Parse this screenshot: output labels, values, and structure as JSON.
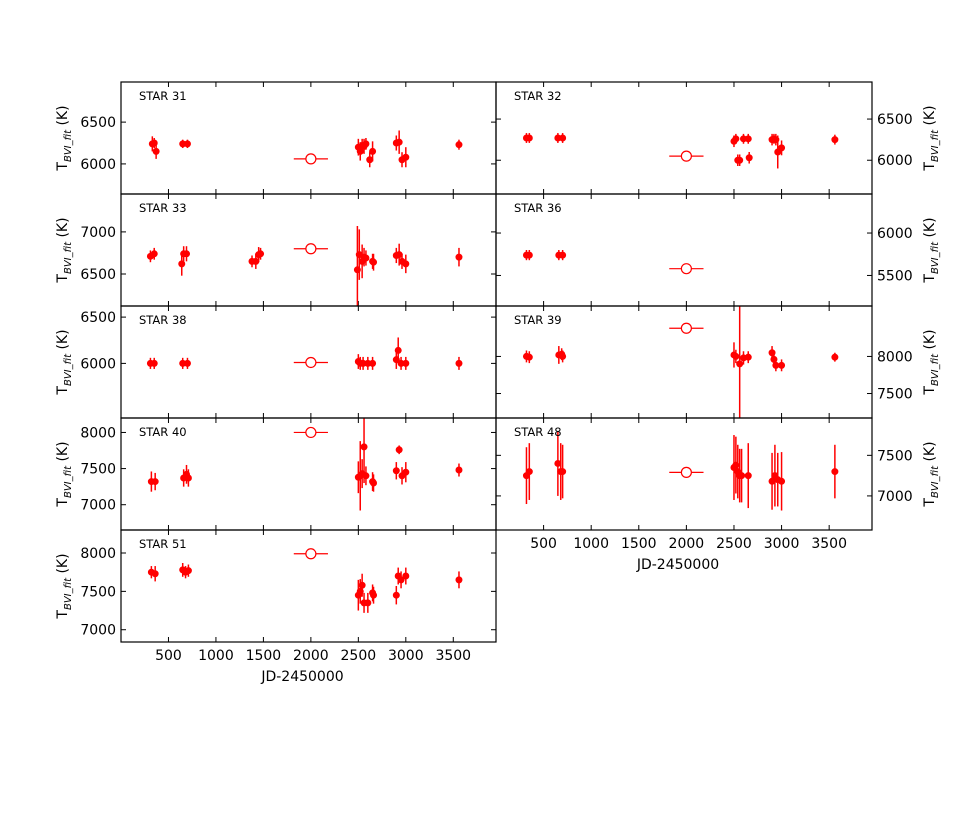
{
  "figure": {
    "xlabel": "JD-2450000",
    "ylabel_main": "T",
    "ylabel_sub": "BVI_fit",
    "ylabel_unit": " (K)",
    "marker_color": "#ff0000"
  },
  "chart_data": [
    {
      "type": "scatter",
      "title": "STAR 31",
      "ylabel": "T_BVI_fit (K)",
      "xlabel": "",
      "xlim": [
        0,
        3950
      ],
      "ylim": [
        5640,
        6980
      ],
      "yticks": [
        6000,
        6500
      ],
      "xticks": [],
      "points": [
        [
          330,
          6240,
          90
        ],
        [
          350,
          6250,
          60
        ],
        [
          370,
          6150,
          90
        ],
        [
          650,
          6240,
          50
        ],
        [
          700,
          6240,
          50
        ],
        [
          2500,
          6200,
          100
        ],
        [
          2520,
          6150,
          110
        ],
        [
          2540,
          6220,
          80
        ],
        [
          2560,
          6210,
          90
        ],
        [
          2580,
          6240,
          70
        ],
        [
          2620,
          6050,
          90
        ],
        [
          2650,
          6150,
          120
        ],
        [
          2900,
          6250,
          90
        ],
        [
          2930,
          6260,
          140
        ],
        [
          2960,
          6050,
          90
        ],
        [
          3000,
          6080,
          120
        ],
        [
          3560,
          6230,
          60
        ]
      ],
      "mean_point": {
        "x": 2000,
        "y": 6060,
        "xerr": 180
      }
    },
    {
      "type": "scatter",
      "title": "STAR 32",
      "ylabel": "T_BVI_fit (K)",
      "xlabel": "",
      "xlim": [
        0,
        3950
      ],
      "ylim": [
        5590,
        6950
      ],
      "yticks": [
        6000,
        6500
      ],
      "xticks": [],
      "points": [
        [
          320,
          6270,
          60
        ],
        [
          350,
          6270,
          60
        ],
        [
          650,
          6270,
          60
        ],
        [
          700,
          6270,
          60
        ],
        [
          2500,
          6230,
          70
        ],
        [
          2520,
          6260,
          60
        ],
        [
          2540,
          6000,
          70
        ],
        [
          2560,
          6000,
          70
        ],
        [
          2600,
          6260,
          60
        ],
        [
          2650,
          6260,
          60
        ],
        [
          2660,
          6030,
          70
        ],
        [
          2900,
          6250,
          70
        ],
        [
          2920,
          6260,
          60
        ],
        [
          2940,
          6250,
          70
        ],
        [
          2960,
          6100,
          200
        ],
        [
          3000,
          6150,
          90
        ],
        [
          3560,
          6250,
          60
        ]
      ],
      "mean_point": {
        "x": 2000,
        "y": 6050,
        "xerr": 180
      }
    },
    {
      "type": "scatter",
      "title": "STAR 33",
      "ylabel": "T_BVI_fit (K)",
      "xlabel": "",
      "xlim": [
        0,
        3950
      ],
      "ylim": [
        6120,
        7450
      ],
      "yticks": [
        6500,
        7000
      ],
      "xticks": [],
      "points": [
        [
          310,
          6710,
          70
        ],
        [
          350,
          6740,
          70
        ],
        [
          640,
          6620,
          140
        ],
        [
          660,
          6740,
          90
        ],
        [
          690,
          6740,
          90
        ],
        [
          1380,
          6650,
          70
        ],
        [
          1420,
          6650,
          90
        ],
        [
          1450,
          6730,
          90
        ],
        [
          1470,
          6740,
          70
        ],
        [
          2490,
          6550,
          520
        ],
        [
          2510,
          6730,
          300
        ],
        [
          2540,
          6650,
          200
        ],
        [
          2560,
          6700,
          110
        ],
        [
          2580,
          6690,
          90
        ],
        [
          2650,
          6650,
          90
        ],
        [
          2660,
          6640,
          100
        ],
        [
          2900,
          6720,
          90
        ],
        [
          2930,
          6730,
          130
        ],
        [
          2960,
          6650,
          90
        ],
        [
          3000,
          6620,
          110
        ],
        [
          3560,
          6700,
          110
        ]
      ],
      "mean_point": {
        "x": 2000,
        "y": 6800,
        "xerr": 180
      }
    },
    {
      "type": "scatter",
      "title": "STAR 36",
      "ylabel": "T_BVI_fit (K)",
      "xlabel": "",
      "xlim": [
        0,
        3950
      ],
      "ylim": [
        5140,
        6460
      ],
      "yticks": [
        5500,
        6000
      ],
      "xticks": [],
      "points": [
        [
          320,
          5740,
          60
        ],
        [
          350,
          5740,
          60
        ],
        [
          660,
          5740,
          60
        ],
        [
          700,
          5740,
          60
        ]
      ],
      "mean_point": {
        "x": 2000,
        "y": 5580,
        "xerr": 180
      }
    },
    {
      "type": "scatter",
      "title": "STAR 38",
      "ylabel": "T_BVI_fit (K)",
      "xlabel": "",
      "xlim": [
        0,
        3950
      ],
      "ylim": [
        5410,
        6620
      ],
      "yticks": [
        6000,
        6500
      ],
      "xticks": [],
      "points": [
        [
          310,
          6000,
          60
        ],
        [
          350,
          6000,
          60
        ],
        [
          650,
          6000,
          60
        ],
        [
          700,
          6000,
          60
        ],
        [
          2500,
          6020,
          80
        ],
        [
          2520,
          6000,
          70
        ],
        [
          2550,
          6000,
          70
        ],
        [
          2600,
          6000,
          70
        ],
        [
          2650,
          6000,
          70
        ],
        [
          2900,
          6040,
          100
        ],
        [
          2920,
          6140,
          140
        ],
        [
          2950,
          6000,
          70
        ],
        [
          3000,
          6000,
          70
        ],
        [
          3560,
          6000,
          70
        ]
      ],
      "mean_point": {
        "x": 2000,
        "y": 6010,
        "xerr": 180
      }
    },
    {
      "type": "scatter",
      "title": "STAR 39",
      "ylabel": "T_BVI_fit (K)",
      "xlabel": "",
      "xlim": [
        0,
        3950
      ],
      "ylim": [
        7170,
        8680
      ],
      "yticks": [
        7500,
        8000
      ],
      "xticks": [],
      "points": [
        [
          320,
          8000,
          80
        ],
        [
          350,
          7990,
          80
        ],
        [
          660,
          8020,
          120
        ],
        [
          690,
          8030,
          80
        ],
        [
          700,
          8000,
          80
        ],
        [
          2500,
          8020,
          170
        ],
        [
          2520,
          8000,
          90
        ],
        [
          2560,
          7900,
          800
        ],
        [
          2600,
          7980,
          90
        ],
        [
          2650,
          7990,
          80
        ],
        [
          2900,
          8050,
          90
        ],
        [
          2920,
          7960,
          80
        ],
        [
          2940,
          7880,
          80
        ],
        [
          3000,
          7880,
          80
        ],
        [
          3560,
          7990,
          60
        ]
      ],
      "mean_point": {
        "x": 2000,
        "y": 8380,
        "xerr": 180
      }
    },
    {
      "type": "scatter",
      "title": "STAR 40",
      "ylabel": "T_BVI_fit (K)",
      "xlabel": "",
      "xlim": [
        0,
        3950
      ],
      "ylim": [
        6650,
        8200
      ],
      "yticks": [
        7000,
        7500,
        8000
      ],
      "xticks": [],
      "points": [
        [
          320,
          7320,
          140
        ],
        [
          360,
          7320,
          120
        ],
        [
          660,
          7370,
          120
        ],
        [
          690,
          7420,
          130
        ],
        [
          710,
          7370,
          120
        ],
        [
          2500,
          7380,
          220
        ],
        [
          2520,
          7400,
          480
        ],
        [
          2540,
          7430,
          200
        ],
        [
          2560,
          7800,
          500
        ],
        [
          2580,
          7400,
          130
        ],
        [
          2650,
          7320,
          130
        ],
        [
          2660,
          7300,
          120
        ],
        [
          2900,
          7470,
          120
        ],
        [
          2930,
          7760,
          60
        ],
        [
          2960,
          7400,
          120
        ],
        [
          3000,
          7450,
          140
        ],
        [
          3560,
          7480,
          90
        ]
      ],
      "mean_point": {
        "x": 2000,
        "y": 8000,
        "xerr": 180
      }
    },
    {
      "type": "scatter",
      "title": "STAR 48",
      "ylabel": "T_BVI_fit (K)",
      "xlabel": "JD-2450000",
      "xlim": [
        0,
        3950
      ],
      "ylim": [
        6580,
        7960
      ],
      "yticks": [
        7000,
        7500
      ],
      "xticks": [
        500,
        1000,
        1500,
        2000,
        2500,
        3000,
        3500
      ],
      "points": [
        [
          320,
          7250,
          350
        ],
        [
          350,
          7300,
          350
        ],
        [
          650,
          7400,
          400
        ],
        [
          680,
          7300,
          350
        ],
        [
          700,
          7300,
          330
        ],
        [
          2500,
          7350,
          400
        ],
        [
          2520,
          7380,
          350
        ],
        [
          2540,
          7300,
          330
        ],
        [
          2560,
          7250,
          330
        ],
        [
          2580,
          7250,
          330
        ],
        [
          2650,
          7250,
          400
        ],
        [
          2900,
          7180,
          350
        ],
        [
          2930,
          7250,
          380
        ],
        [
          2960,
          7200,
          330
        ],
        [
          3000,
          7180,
          360
        ],
        [
          3560,
          7300,
          330
        ]
      ],
      "mean_point": {
        "x": 2000,
        "y": 7290,
        "xerr": 180
      }
    },
    {
      "type": "scatter",
      "title": "STAR 51",
      "ylabel": "T_BVI_fit (K)",
      "xlabel": "JD-2450000",
      "xlim": [
        0,
        3950
      ],
      "ylim": [
        6840,
        8300
      ],
      "yticks": [
        7000,
        7500,
        8000
      ],
      "xticks": [
        500,
        1000,
        1500,
        2000,
        2500,
        3000,
        3500
      ],
      "points": [
        [
          320,
          7750,
          80
        ],
        [
          360,
          7730,
          100
        ],
        [
          650,
          7780,
          90
        ],
        [
          680,
          7750,
          80
        ],
        [
          710,
          7770,
          80
        ],
        [
          2500,
          7450,
          200
        ],
        [
          2520,
          7500,
          160
        ],
        [
          2540,
          7580,
          150
        ],
        [
          2560,
          7350,
          130
        ],
        [
          2600,
          7350,
          130
        ],
        [
          2650,
          7480,
          110
        ],
        [
          2660,
          7450,
          110
        ],
        [
          2900,
          7450,
          120
        ],
        [
          2920,
          7700,
          110
        ],
        [
          2950,
          7650,
          110
        ],
        [
          3000,
          7700,
          110
        ],
        [
          3560,
          7650,
          110
        ]
      ],
      "mean_point": {
        "x": 2000,
        "y": 7990,
        "xerr": 180
      }
    }
  ]
}
